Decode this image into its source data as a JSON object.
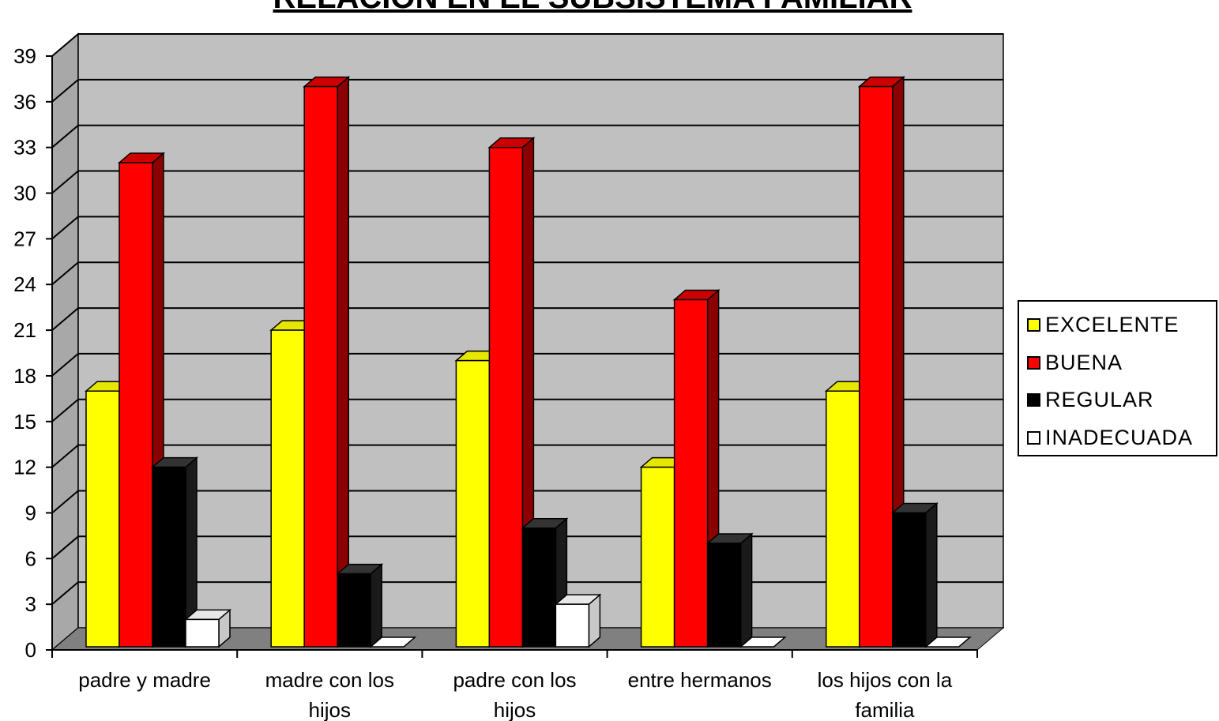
{
  "chart_data": {
    "type": "bar",
    "title": "RELACION EN EL SUBSISTEMA FAMILIAR",
    "categories": [
      "padre y madre",
      "madre con los hijos",
      "padre con los hijos",
      "entre hermanos",
      "los hijos con la familia"
    ],
    "series": [
      {
        "name": "EXCELENTE",
        "color": "#ffff00",
        "values": [
          17,
          21,
          19,
          12,
          17
        ]
      },
      {
        "name": "BUENA",
        "color": "#ff0000",
        "values": [
          32,
          37,
          33,
          23,
          37
        ]
      },
      {
        "name": "REGULAR",
        "color": "#000000",
        "values": [
          12,
          5,
          8,
          7,
          9
        ]
      },
      {
        "name": "INADECUADA",
        "color": "#ffffff",
        "values": [
          2,
          0,
          3,
          0,
          0
        ]
      }
    ],
    "yticks": [
      0,
      3,
      6,
      9,
      12,
      15,
      18,
      21,
      24,
      27,
      30,
      33,
      36,
      39
    ],
    "ylim": [
      0,
      39
    ],
    "grid": true,
    "legend_position": "right",
    "wall_color": "#c0c0c0",
    "floor_color": "#808080"
  }
}
